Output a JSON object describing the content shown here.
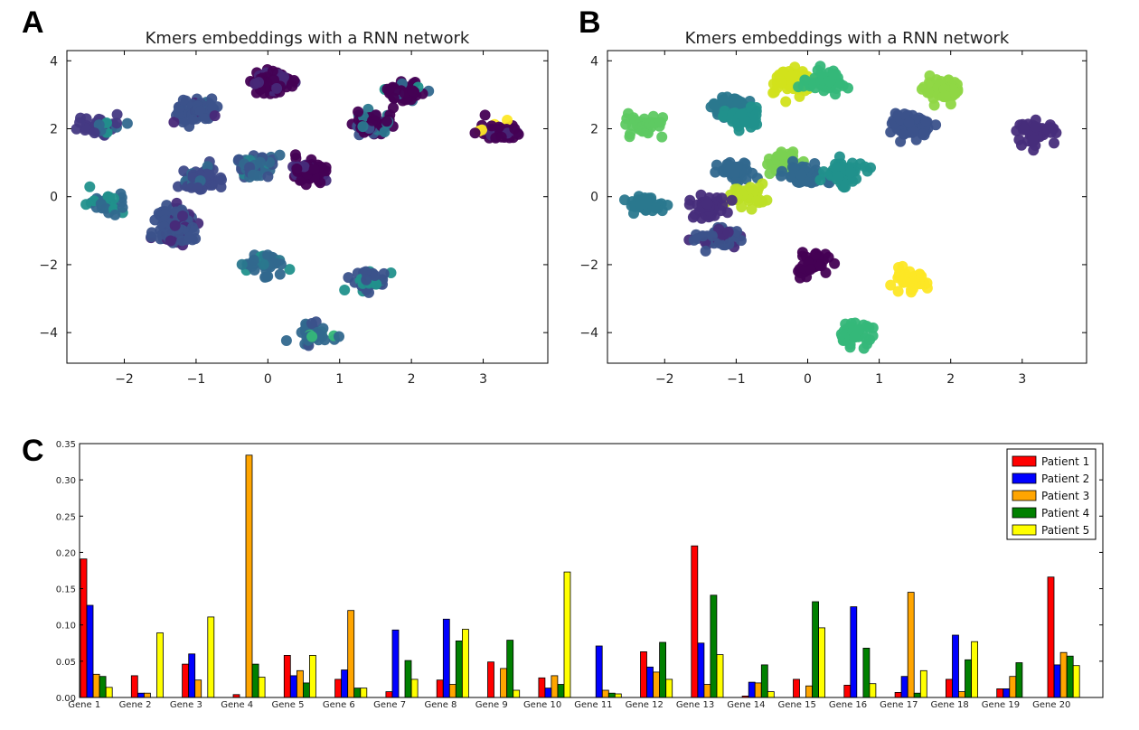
{
  "panels": {
    "a": "A",
    "b": "B",
    "c": "C"
  },
  "chart_data": [
    {
      "type": "scatter",
      "title": "Kmers embeddings with a RNN network",
      "xlabel": "",
      "ylabel": "",
      "xlim": [
        -2.8,
        3.9
      ],
      "ylim": [
        -4.9,
        4.3
      ],
      "xticks": [
        -2,
        -1,
        0,
        1,
        2,
        3
      ],
      "yticks": [
        -4,
        -2,
        0,
        2,
        4
      ],
      "xtick_labels": [
        "−2",
        "−1",
        "0",
        "1",
        "2",
        "3"
      ],
      "ytick_labels": [
        "−4",
        "−2",
        "0",
        "2",
        "4"
      ],
      "color_note": "points colored by kmer source (mostly dark purple, some teal/green, yellow at right cluster)",
      "clusters": [
        {
          "cx": -2.3,
          "cy": 2.1,
          "n": 40,
          "color": "#443983",
          "mix": [
            "#31688e",
            "#21918c"
          ]
        },
        {
          "cx": -2.25,
          "cy": -0.2,
          "n": 35,
          "color": "#31688e",
          "mix": [
            "#21918c"
          ]
        },
        {
          "cx": -1.0,
          "cy": 2.5,
          "n": 70,
          "color": "#3b528b",
          "mix": [
            "#482878",
            "#31688e"
          ]
        },
        {
          "cx": -0.9,
          "cy": 0.5,
          "n": 60,
          "color": "#3e4a89",
          "mix": [
            "#31688e"
          ]
        },
        {
          "cx": -1.3,
          "cy": -0.6,
          "n": 55,
          "color": "#3b528b",
          "mix": [
            "#472d7b"
          ]
        },
        {
          "cx": -1.3,
          "cy": -1.1,
          "n": 60,
          "color": "#3b528b",
          "mix": [
            "#482878"
          ]
        },
        {
          "cx": 0.05,
          "cy": 3.4,
          "n": 110,
          "color": "#440154",
          "mix": [
            "#482878"
          ]
        },
        {
          "cx": -0.2,
          "cy": 0.9,
          "n": 80,
          "color": "#31688e",
          "mix": [
            "#26828e",
            "#3b528b"
          ]
        },
        {
          "cx": 0.55,
          "cy": 0.7,
          "n": 70,
          "color": "#440154",
          "mix": [
            "#472d7b"
          ]
        },
        {
          "cx": -0.05,
          "cy": -1.95,
          "n": 45,
          "color": "#31688e",
          "mix": [
            "#2a788e",
            "#21918c"
          ]
        },
        {
          "cx": 1.45,
          "cy": 2.1,
          "n": 70,
          "color": "#440154",
          "mix": [
            "#3b528b",
            "#2a788e"
          ]
        },
        {
          "cx": 1.9,
          "cy": 3.1,
          "n": 55,
          "color": "#440154",
          "mix": [
            "#31688e",
            "#21918c"
          ]
        },
        {
          "cx": 1.4,
          "cy": -2.5,
          "n": 40,
          "color": "#3b528b",
          "mix": [
            "#21918c",
            "#2a788e"
          ]
        },
        {
          "cx": 0.65,
          "cy": -4.05,
          "n": 40,
          "color": "#31688e",
          "mix": [
            "#35b779",
            "#3b528b"
          ]
        },
        {
          "cx": 3.2,
          "cy": 1.9,
          "n": 50,
          "color": "#440154",
          "mix": [
            "#fde725",
            "#482878"
          ]
        }
      ]
    },
    {
      "type": "scatter",
      "title": "Kmers embeddings with a RNN network",
      "xlabel": "",
      "ylabel": "",
      "xlim": [
        -2.8,
        3.9
      ],
      "ylim": [
        -4.9,
        4.3
      ],
      "xticks": [
        -2,
        -1,
        0,
        1,
        2,
        3
      ],
      "yticks": [
        -4,
        -2,
        0,
        2,
        4
      ],
      "xtick_labels": [
        "−2",
        "−1",
        "0",
        "1",
        "2",
        "3"
      ],
      "ytick_labels": [
        "−4",
        "−2",
        "0",
        "2",
        "4"
      ],
      "color_note": "points colored by cluster assignment",
      "clusters": [
        {
          "cx": -2.3,
          "cy": 2.1,
          "n": 40,
          "color": "#5ec962",
          "mix": []
        },
        {
          "cx": -2.25,
          "cy": -0.2,
          "n": 35,
          "color": "#2a788e",
          "mix": []
        },
        {
          "cx": -1.1,
          "cy": 2.65,
          "n": 45,
          "color": "#2a788e",
          "mix": []
        },
        {
          "cx": -0.9,
          "cy": 2.3,
          "n": 45,
          "color": "#21918c",
          "mix": []
        },
        {
          "cx": -1.0,
          "cy": 0.7,
          "n": 40,
          "color": "#31688e",
          "mix": []
        },
        {
          "cx": -0.85,
          "cy": 0.05,
          "n": 35,
          "color": "#bddf26",
          "mix": []
        },
        {
          "cx": -1.4,
          "cy": -0.3,
          "n": 40,
          "color": "#472d7b",
          "mix": []
        },
        {
          "cx": -1.25,
          "cy": -1.15,
          "n": 60,
          "color": "#3b528b",
          "mix": [
            "#472d7b"
          ]
        },
        {
          "cx": -0.2,
          "cy": 3.4,
          "n": 55,
          "color": "#d2e21b",
          "mix": []
        },
        {
          "cx": 0.25,
          "cy": 3.4,
          "n": 55,
          "color": "#35b779",
          "mix": []
        },
        {
          "cx": -0.35,
          "cy": 1.0,
          "n": 35,
          "color": "#7ad151",
          "mix": []
        },
        {
          "cx": -0.05,
          "cy": 0.6,
          "n": 60,
          "color": "#31688e",
          "mix": []
        },
        {
          "cx": 0.5,
          "cy": 0.7,
          "n": 70,
          "color": "#21918c",
          "mix": []
        },
        {
          "cx": 0.05,
          "cy": -2.0,
          "n": 45,
          "color": "#440154",
          "mix": []
        },
        {
          "cx": 1.45,
          "cy": 2.1,
          "n": 70,
          "color": "#3b528b",
          "mix": []
        },
        {
          "cx": 1.9,
          "cy": 3.1,
          "n": 60,
          "color": "#8fd744",
          "mix": []
        },
        {
          "cx": 1.4,
          "cy": -2.5,
          "n": 40,
          "color": "#fde725",
          "mix": []
        },
        {
          "cx": 0.65,
          "cy": -4.05,
          "n": 40,
          "color": "#35b779",
          "mix": []
        },
        {
          "cx": 3.2,
          "cy": 1.9,
          "n": 50,
          "color": "#472d7b",
          "mix": []
        }
      ]
    },
    {
      "type": "bar",
      "title": "",
      "xlabel": "",
      "ylabel": "",
      "ylim": [
        0,
        0.35
      ],
      "yticks": [
        0,
        0.05,
        0.1,
        0.15,
        0.2,
        0.25,
        0.3,
        0.35
      ],
      "ytick_labels": [
        "0.00",
        "0.05",
        "0.10",
        "0.15",
        "0.20",
        "0.25",
        "0.30",
        "0.35"
      ],
      "categories": [
        "Gene 1",
        "Gene 2",
        "Gene 3",
        "Gene 4",
        "Gene 5",
        "Gene 6",
        "Gene 7",
        "Gene 8",
        "Gene 9",
        "Gene 10",
        "Gene 11",
        "Gene 12",
        "Gene 13",
        "Gene 14",
        "Gene 15",
        "Gene 16",
        "Gene 17",
        "Gene 18",
        "Gene 19",
        "Gene 20"
      ],
      "series": [
        {
          "name": "Patient 1",
          "color": "#ff0000",
          "values": [
            0.191,
            0.03,
            0.046,
            0.004,
            0.058,
            0.025,
            0.008,
            0.024,
            0.049,
            0.027,
            0.0,
            0.063,
            0.209,
            0.002,
            0.025,
            0.017,
            0.007,
            0.025,
            0.012,
            0.166
          ]
        },
        {
          "name": "Patient 2",
          "color": "#0000ff",
          "values": [
            0.127,
            0.006,
            0.06,
            0.0,
            0.03,
            0.038,
            0.093,
            0.108,
            0.0,
            0.013,
            0.071,
            0.042,
            0.075,
            0.021,
            0.0,
            0.125,
            0.029,
            0.086,
            0.012,
            0.045
          ]
        },
        {
          "name": "Patient 3",
          "color": "#ffa500",
          "values": [
            0.032,
            0.006,
            0.024,
            0.334,
            0.037,
            0.12,
            0.0,
            0.018,
            0.04,
            0.03,
            0.01,
            0.035,
            0.018,
            0.02,
            0.016,
            0.0,
            0.145,
            0.008,
            0.029,
            0.062
          ]
        },
        {
          "name": "Patient 4",
          "color": "#008000",
          "values": [
            0.029,
            0.0,
            0.0,
            0.046,
            0.02,
            0.013,
            0.051,
            0.078,
            0.079,
            0.018,
            0.006,
            0.076,
            0.141,
            0.045,
            0.132,
            0.068,
            0.006,
            0.052,
            0.048,
            0.057
          ]
        },
        {
          "name": "Patient 5",
          "color": "#ffff00",
          "values": [
            0.014,
            0.089,
            0.111,
            0.028,
            0.058,
            0.013,
            0.025,
            0.094,
            0.01,
            0.173,
            0.005,
            0.025,
            0.059,
            0.008,
            0.096,
            0.019,
            0.037,
            0.077,
            0.0,
            0.044
          ]
        }
      ],
      "legend": "top-right"
    }
  ]
}
